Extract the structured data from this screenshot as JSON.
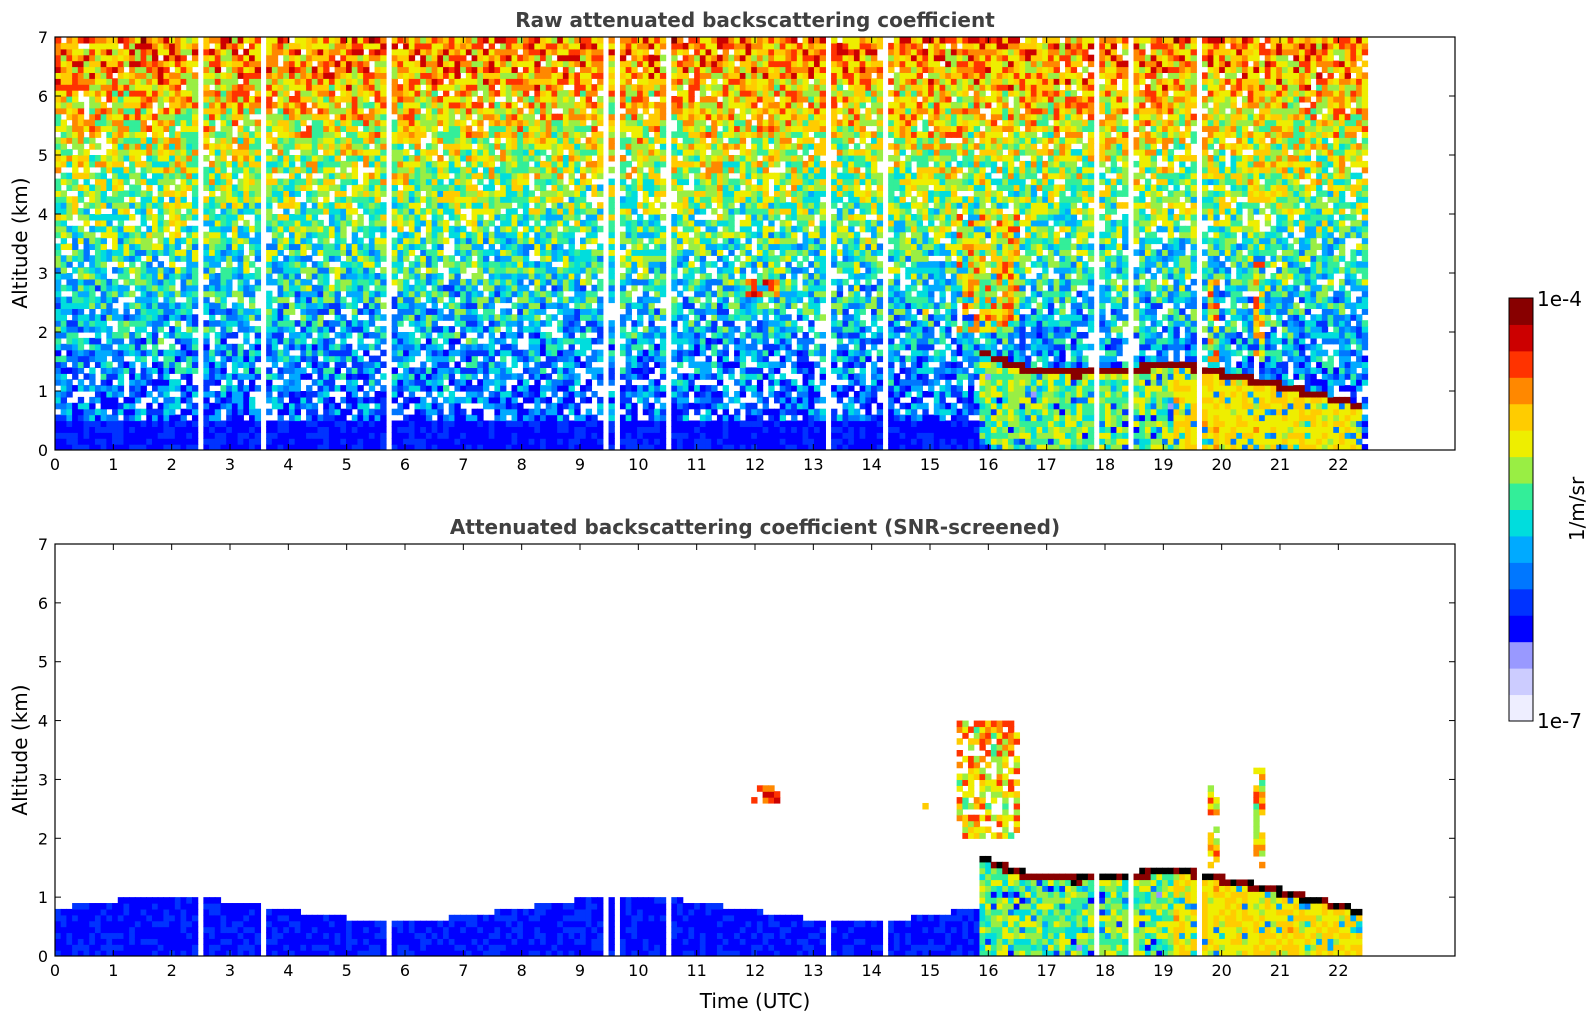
{
  "figure": {
    "colors": {
      "title": "#404040",
      "axis": "#000000",
      "background": "#ffffff"
    },
    "colormap": [
      "#eeeeff",
      "#ccccff",
      "#9999ff",
      "#0000ff",
      "#0033ff",
      "#0077ff",
      "#00aaff",
      "#00dddd",
      "#33ee99",
      "#99ee44",
      "#eeee00",
      "#ffcc00",
      "#ff8800",
      "#ff3300",
      "#cc0000",
      "#880000"
    ]
  },
  "chart_data": [
    {
      "type": "heatmap",
      "title": "Raw attenuated backscattering coefficient",
      "xlabel": "",
      "ylabel": "Altitude (km)",
      "xlim": [
        0,
        24
      ],
      "ylim": [
        0,
        7
      ],
      "x_ticks": [
        "0",
        "1",
        "2",
        "3",
        "4",
        "5",
        "6",
        "7",
        "8",
        "9",
        "10",
        "11",
        "12",
        "13",
        "14",
        "15",
        "16",
        "17",
        "18",
        "19",
        "20",
        "21",
        "22"
      ],
      "y_ticks": [
        "0",
        "1",
        "2",
        "3",
        "4",
        "5",
        "6",
        "7"
      ],
      "data_end_time": 22.5,
      "screened": false,
      "features": [
        {
          "kind": "boundary_layer",
          "x": [
            0,
            15.8
          ],
          "top": 0.5
        },
        {
          "kind": "cloud_layer",
          "x": [
            15.8,
            22.4
          ],
          "base_height": [
            1.7,
            1.4,
            1.3,
            1.45,
            1.1,
            0.75
          ]
        },
        {
          "kind": "elevated_layer",
          "x": [
            11.8,
            12.4
          ],
          "y": [
            2.6,
            2.9
          ]
        },
        {
          "kind": "elevated_layer",
          "x": [
            14.9,
            15.0
          ],
          "y": [
            2.3,
            2.6
          ]
        },
        {
          "kind": "plume",
          "x": [
            15.5,
            16.5
          ],
          "y": [
            2.0,
            4.0
          ]
        },
        {
          "kind": "plume",
          "x": [
            19.8,
            20.0
          ],
          "y": [
            1.5,
            2.9
          ]
        },
        {
          "kind": "plume",
          "x": [
            20.5,
            20.7
          ],
          "y": [
            1.5,
            3.2
          ]
        }
      ]
    },
    {
      "type": "heatmap",
      "title": "Attenuated backscattering coefficient (SNR-screened)",
      "xlabel": "Time (UTC)",
      "ylabel": "Altitude (km)",
      "xlim": [
        0,
        24
      ],
      "ylim": [
        0,
        7
      ],
      "x_ticks": [
        "0",
        "1",
        "2",
        "3",
        "4",
        "5",
        "6",
        "7",
        "8",
        "9",
        "10",
        "11",
        "12",
        "13",
        "14",
        "15",
        "16",
        "17",
        "18",
        "19",
        "20",
        "21",
        "22"
      ],
      "y_ticks": [
        "0",
        "1",
        "2",
        "3",
        "4",
        "5",
        "6",
        "7"
      ],
      "data_end_time": 22.5,
      "screened": true
    }
  ],
  "colorbar": {
    "label": "1/m/sr",
    "max_label": "1e-4",
    "min_label": "1e-7",
    "range": [
      1e-07,
      0.0001
    ],
    "scale": "log"
  }
}
